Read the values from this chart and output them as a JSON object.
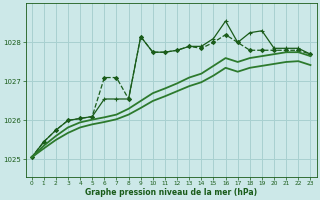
{
  "background_color": "#cce8e8",
  "grid_color": "#a8d0d0",
  "line_colors": [
    "#1a5c1a",
    "#1a5c1a",
    "#2d7a2d",
    "#2d7a2d"
  ],
  "xlabel": "Graphe pression niveau de la mer (hPa)",
  "xlim": [
    -0.5,
    23.5
  ],
  "ylim": [
    1024.55,
    1029.0
  ],
  "yticks": [
    1025,
    1026,
    1027,
    1028
  ],
  "xticks": [
    0,
    1,
    2,
    3,
    4,
    5,
    6,
    7,
    8,
    9,
    10,
    11,
    12,
    13,
    14,
    15,
    16,
    17,
    18,
    19,
    20,
    21,
    22,
    23
  ],
  "series": [
    {
      "x": [
        0,
        1,
        2,
        3,
        4,
        5,
        6,
        7,
        8,
        9,
        10,
        11,
        12,
        13,
        14,
        15,
        16,
        17,
        18,
        19,
        20,
        21,
        22,
        23
      ],
      "y": [
        1025.05,
        1025.45,
        1025.75,
        1026.0,
        1026.05,
        1026.1,
        1027.1,
        1027.1,
        1026.55,
        1028.15,
        1027.75,
        1027.75,
        1027.8,
        1027.9,
        1027.85,
        1028.0,
        1028.2,
        1028.0,
        1027.8,
        1027.8,
        1027.8,
        1027.8,
        1027.8,
        1027.7
      ],
      "marker": "D",
      "markersize": 2.0,
      "linewidth": 0.9,
      "linestyle": "--",
      "color": "#1a5c1a"
    },
    {
      "x": [
        0,
        1,
        2,
        3,
        4,
        5,
        6,
        7,
        8,
        9,
        10,
        11,
        12,
        13,
        14,
        15,
        16,
        17,
        18,
        19,
        20,
        21,
        22,
        23
      ],
      "y": [
        1025.05,
        1025.45,
        1025.75,
        1026.0,
        1026.05,
        1026.1,
        1026.55,
        1026.55,
        1026.55,
        1028.15,
        1027.75,
        1027.75,
        1027.8,
        1027.9,
        1027.9,
        1028.1,
        1028.55,
        1028.0,
        1028.25,
        1028.3,
        1027.85,
        1027.85,
        1027.85,
        1027.7
      ],
      "marker": "+",
      "markersize": 3.5,
      "linewidth": 0.9,
      "linestyle": "-",
      "color": "#1a5c1a"
    },
    {
      "x": [
        0,
        1,
        2,
        3,
        4,
        5,
        6,
        7,
        8,
        9,
        10,
        11,
        12,
        13,
        14,
        15,
        16,
        17,
        18,
        19,
        20,
        21,
        22,
        23
      ],
      "y": [
        1025.05,
        1025.35,
        1025.6,
        1025.82,
        1025.95,
        1026.02,
        1026.08,
        1026.15,
        1026.3,
        1026.5,
        1026.7,
        1026.82,
        1026.95,
        1027.1,
        1027.2,
        1027.4,
        1027.6,
        1027.5,
        1027.6,
        1027.65,
        1027.7,
        1027.75,
        1027.75,
        1027.65
      ],
      "marker": null,
      "markersize": 0,
      "linewidth": 1.3,
      "linestyle": "-",
      "color": "#2d7a2d"
    },
    {
      "x": [
        0,
        1,
        2,
        3,
        4,
        5,
        6,
        7,
        8,
        9,
        10,
        11,
        12,
        13,
        14,
        15,
        16,
        17,
        18,
        19,
        20,
        21,
        22,
        23
      ],
      "y": [
        1025.05,
        1025.28,
        1025.5,
        1025.68,
        1025.82,
        1025.9,
        1025.96,
        1026.03,
        1026.15,
        1026.32,
        1026.5,
        1026.62,
        1026.75,
        1026.88,
        1026.98,
        1027.15,
        1027.35,
        1027.25,
        1027.35,
        1027.4,
        1027.45,
        1027.5,
        1027.52,
        1027.42
      ],
      "marker": null,
      "markersize": 0,
      "linewidth": 1.3,
      "linestyle": "-",
      "color": "#2d7a2d"
    }
  ]
}
